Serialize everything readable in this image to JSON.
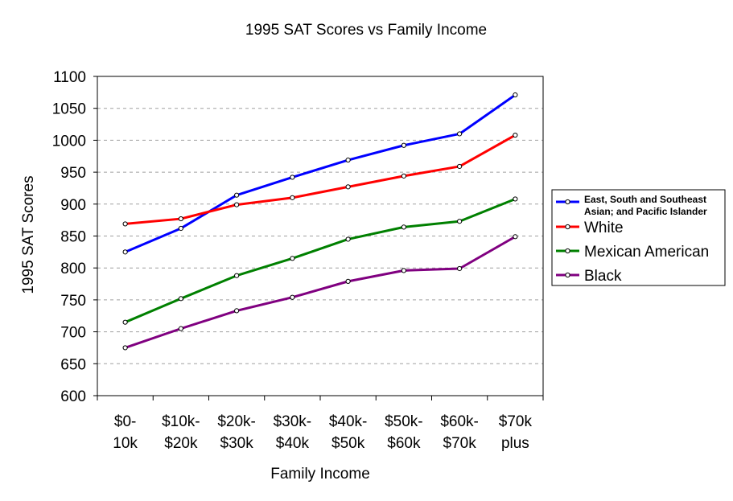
{
  "chart_data": {
    "type": "line",
    "title": "1995 SAT Scores vs Family Income",
    "xlabel": "Family Income",
    "ylabel": "1995 SAT Scores",
    "categories": [
      [
        "$0-",
        "10k"
      ],
      [
        "$10k-",
        "$20k"
      ],
      [
        "$20k-",
        "$30k"
      ],
      [
        "$30k-",
        "$40k"
      ],
      [
        "$40k-",
        "$50k"
      ],
      [
        "$50k-",
        "$60k"
      ],
      [
        "$60k-",
        "$70k"
      ],
      [
        "$70k",
        "plus"
      ]
    ],
    "ylim": [
      600,
      1100
    ],
    "yticks": [
      600,
      650,
      700,
      750,
      800,
      850,
      900,
      950,
      1000,
      1050,
      1100
    ],
    "grid": "horizontal dashed",
    "legend_position": "right",
    "series": [
      {
        "name_lines": [
          "East, South and Southeast",
          "Asian; and Pacific Islander"
        ],
        "color": "#0000ff",
        "values": [
          825,
          862,
          914,
          942,
          969,
          992,
          1010,
          1071
        ]
      },
      {
        "name": "White",
        "color": "#ff0000",
        "values": [
          869,
          877,
          899,
          910,
          927,
          944,
          959,
          1008
        ]
      },
      {
        "name": "Mexican American",
        "color": "#008000",
        "values": [
          715,
          752,
          788,
          815,
          845,
          864,
          873,
          908
        ]
      },
      {
        "name": "Black",
        "color": "#800080",
        "values": [
          675,
          705,
          733,
          754,
          779,
          796,
          799,
          849
        ]
      }
    ]
  }
}
